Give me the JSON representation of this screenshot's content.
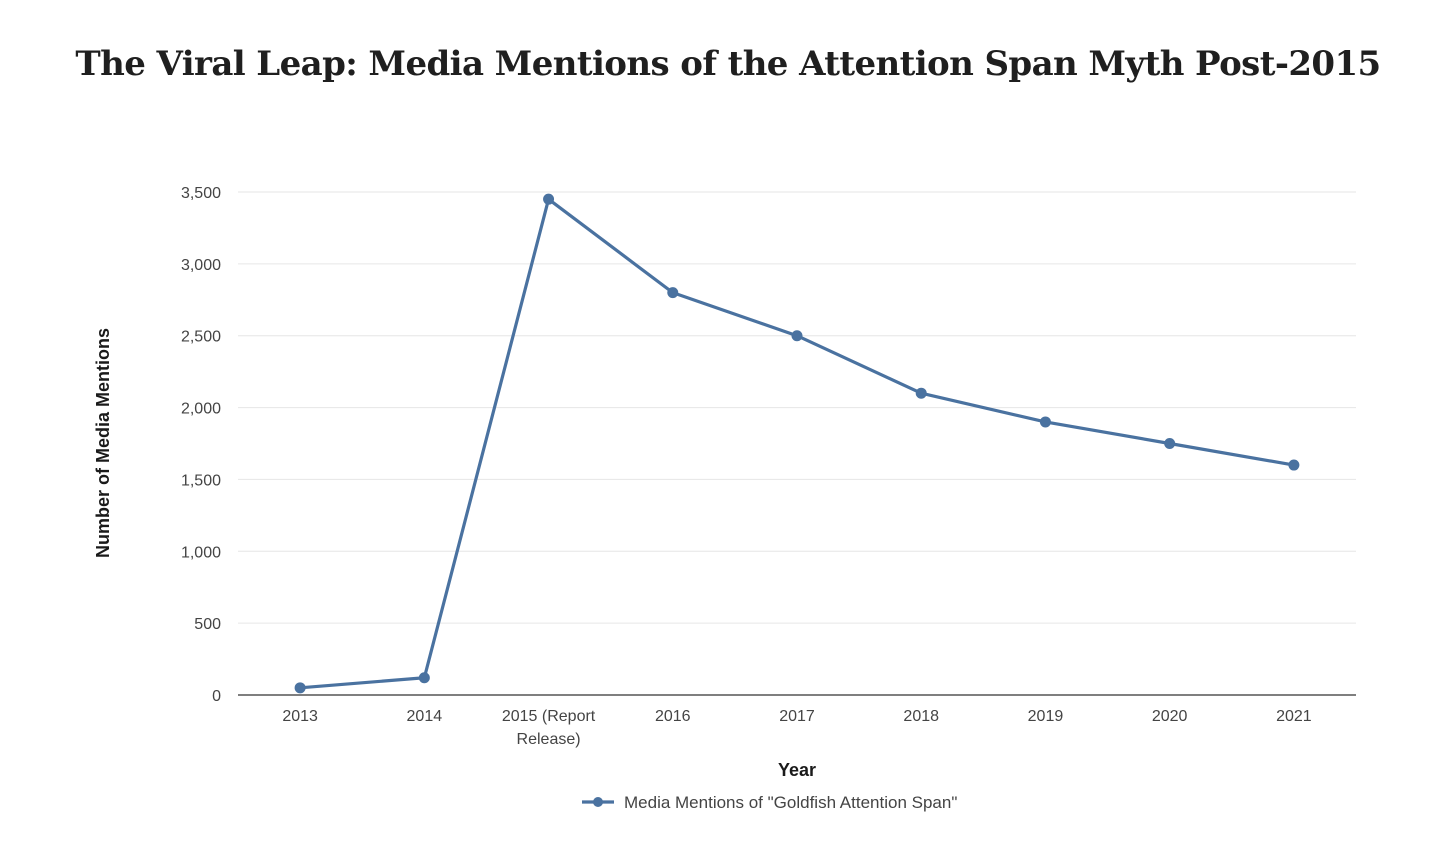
{
  "chart_data": {
    "type": "line",
    "title": "The Viral Leap: Media Mentions of the Attention Span Myth Post-2015",
    "xlabel": "Year",
    "ylabel": "Number of Media Mentions",
    "categories": [
      "2013",
      "2014",
      "2015 (Report Release)",
      "2016",
      "2017",
      "2018",
      "2019",
      "2020",
      "2021"
    ],
    "series": [
      {
        "name": "Media Mentions of \"Goldfish Attention Span\"",
        "values": [
          50,
          120,
          3450,
          2800,
          2500,
          2100,
          1900,
          1750,
          1600
        ],
        "color": "#4a72a0"
      }
    ],
    "ylim": [
      0,
      3500
    ],
    "yticks": [
      0,
      500,
      1000,
      1500,
      2000,
      2500,
      3000,
      3500
    ],
    "ytick_labels": [
      "0",
      "500",
      "1,000",
      "1,500",
      "2,000",
      "2,500",
      "3,000",
      "3,500"
    ],
    "grid": true,
    "legend_position": "bottom-center",
    "colors": {
      "line": "#4a72a0",
      "grid": "#e6e6e6",
      "axis": "#333333"
    }
  }
}
